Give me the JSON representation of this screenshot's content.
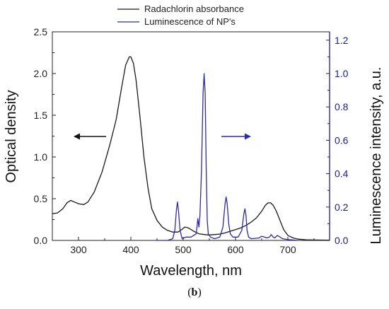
{
  "caption": {
    "open": "(",
    "letter": "b",
    "close": ")"
  },
  "colors": {
    "absorbance": "#1a1a1a",
    "luminescence": "#2a2ab4",
    "axis": "#222222",
    "right_axis": "#1a1aa0"
  },
  "chart_data": {
    "type": "line",
    "xlabel": "Wavelength, nm",
    "ylabel": "Optical density",
    "y2label": "Luminescence intensity, a.u.",
    "xlim": [
      250,
      780
    ],
    "ylim": [
      0,
      2.5
    ],
    "y2lim": [
      0,
      1.25
    ],
    "x_ticks": [
      300,
      400,
      500,
      600,
      700
    ],
    "y_ticks": [
      0.0,
      0.5,
      1.0,
      1.5,
      2.0,
      2.5
    ],
    "y2_ticks": [
      0.0,
      0.2,
      0.4,
      0.6,
      0.8,
      1.0,
      1.2
    ],
    "x_tick_labels": [
      "300",
      "400",
      "500",
      "600",
      "700"
    ],
    "y_tick_labels": [
      "0.0",
      "0.5",
      "1.0",
      "1.5",
      "2.0",
      "2.5"
    ],
    "y2_tick_labels": [
      "0.0",
      "0.2",
      "0.4",
      "0.6",
      "0.8",
      "1.0",
      "1.2"
    ],
    "legend_position": "top-center",
    "grid": false,
    "series": [
      {
        "name": "Radachlorin absorbance",
        "axis": "left",
        "color": "#1a1a1a",
        "x": [
          250,
          260,
          270,
          278,
          285,
          292,
          300,
          310,
          318,
          330,
          345,
          360,
          372,
          382,
          390,
          397,
          400,
          405,
          410,
          418,
          425,
          433,
          440,
          450,
          460,
          470,
          480,
          490,
          497,
          503,
          510,
          520,
          530,
          540,
          550,
          560,
          570,
          580,
          590,
          600,
          610,
          620,
          630,
          640,
          650,
          657,
          662,
          667,
          672,
          678,
          685,
          692,
          700,
          710,
          720,
          735,
          750,
          765,
          780
        ],
        "y": [
          0.32,
          0.33,
          0.38,
          0.45,
          0.48,
          0.46,
          0.44,
          0.43,
          0.46,
          0.58,
          0.82,
          1.15,
          1.45,
          1.82,
          2.1,
          2.2,
          2.2,
          2.12,
          1.92,
          1.45,
          1.0,
          0.62,
          0.38,
          0.24,
          0.16,
          0.12,
          0.1,
          0.1,
          0.13,
          0.16,
          0.15,
          0.11,
          0.08,
          0.07,
          0.065,
          0.07,
          0.075,
          0.09,
          0.11,
          0.13,
          0.15,
          0.18,
          0.22,
          0.27,
          0.35,
          0.42,
          0.45,
          0.45,
          0.42,
          0.35,
          0.24,
          0.13,
          0.06,
          0.03,
          0.015,
          0.008,
          0.005,
          0.004,
          0.003
        ]
      },
      {
        "name": "Luminescence of NP's",
        "axis": "right",
        "color": "#2a2ab4",
        "x": [
          450,
          470,
          480,
          484,
          487,
          489,
          491,
          494,
          498,
          505,
          515,
          525,
          528,
          530,
          532,
          535,
          538,
          540,
          542,
          544,
          546,
          548,
          552,
          560,
          570,
          576,
          580,
          582,
          584,
          587,
          590,
          595,
          605,
          612,
          616,
          618,
          620,
          622,
          625,
          630,
          645,
          650,
          655,
          660,
          665,
          668,
          672,
          675,
          680,
          685,
          690,
          700,
          720
        ],
        "y": [
          0.0,
          0.0,
          0.01,
          0.06,
          0.18,
          0.23,
          0.18,
          0.06,
          0.01,
          0.02,
          0.02,
          0.04,
          0.13,
          0.08,
          0.15,
          0.42,
          0.88,
          1.0,
          0.88,
          0.42,
          0.12,
          0.04,
          0.02,
          0.01,
          0.02,
          0.08,
          0.22,
          0.26,
          0.22,
          0.1,
          0.04,
          0.02,
          0.02,
          0.06,
          0.16,
          0.19,
          0.15,
          0.06,
          0.02,
          0.01,
          0.015,
          0.025,
          0.02,
          0.015,
          0.02,
          0.035,
          0.02,
          0.015,
          0.03,
          0.02,
          0.01,
          0.005,
          0.0
        ]
      }
    ]
  }
}
